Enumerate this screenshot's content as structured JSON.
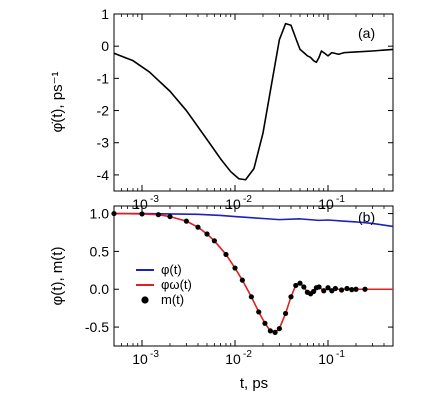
{
  "chart_data": [
    {
      "type": "line",
      "panel_label": "(a)",
      "ylabel": "φ̇(t), ps⁻¹",
      "xscale": "log",
      "xlim": [
        0.0005,
        0.5
      ],
      "ylim": [
        -4.5,
        1
      ],
      "yticks": [
        1,
        0,
        -1,
        -2,
        -3,
        -4
      ],
      "ytick_labels": [
        "1",
        "0",
        "-1",
        "-2",
        "-3",
        "-4"
      ],
      "xticks": [
        0.001,
        0.01,
        0.1
      ],
      "xtick_labels": [
        "10",
        "10",
        "10"
      ],
      "xtick_exponents": [
        "-3",
        "-2",
        "-1"
      ],
      "grid": false,
      "series": [
        {
          "color": "#000000",
          "x": [
            0.0005,
            0.0008,
            0.0012,
            0.002,
            0.003,
            0.005,
            0.007,
            0.009,
            0.011,
            0.013,
            0.016,
            0.02,
            0.025,
            0.03,
            0.035,
            0.04,
            0.045,
            0.05,
            0.055,
            0.06,
            0.065,
            0.07,
            0.075,
            0.08,
            0.085,
            0.09,
            0.1,
            0.11,
            0.13,
            0.15,
            0.2,
            0.3,
            0.5
          ],
          "y": [
            -0.22,
            -0.45,
            -0.8,
            -1.4,
            -2.0,
            -2.9,
            -3.5,
            -3.9,
            -4.12,
            -4.15,
            -3.8,
            -2.7,
            -1.1,
            0.2,
            0.7,
            0.65,
            0.25,
            -0.1,
            -0.2,
            -0.3,
            -0.35,
            -0.45,
            -0.5,
            -0.35,
            -0.15,
            -0.2,
            -0.3,
            -0.2,
            -0.25,
            -0.2,
            -0.18,
            -0.15,
            -0.1
          ]
        }
      ]
    },
    {
      "type": "line",
      "panel_label": "(b)",
      "ylabel": "φ(t), m(t)",
      "xlabel": "t, ps",
      "xscale": "log",
      "xlim": [
        0.0005,
        0.5
      ],
      "ylim": [
        -0.75,
        1.1
      ],
      "yticks": [
        1.0,
        0.5,
        0.0,
        -0.5
      ],
      "ytick_labels": [
        "1.0",
        "0.5",
        "0.0",
        "-0.5"
      ],
      "xticks": [
        0.001,
        0.01,
        0.1
      ],
      "xtick_labels": [
        "10",
        "10",
        "10"
      ],
      "xtick_exponents": [
        "-3",
        "-2",
        "-1"
      ],
      "grid": false,
      "legend_position": "lower-left",
      "series": [
        {
          "name": "φ(t)",
          "color": "#1f1fbf",
          "style": "line",
          "x": [
            0.0005,
            0.001,
            0.002,
            0.004,
            0.007,
            0.01,
            0.015,
            0.02,
            0.03,
            0.05,
            0.08,
            0.1,
            0.15,
            0.2,
            0.3,
            0.5
          ],
          "y": [
            1.0,
            1.0,
            0.995,
            0.99,
            0.975,
            0.96,
            0.945,
            0.935,
            0.92,
            0.93,
            0.91,
            0.915,
            0.9,
            0.89,
            0.87,
            0.83
          ]
        },
        {
          "name": "φω(t)",
          "color": "#e02020",
          "style": "line",
          "x": [
            0.0005,
            0.001,
            0.0015,
            0.002,
            0.003,
            0.004,
            0.005,
            0.006,
            0.008,
            0.01,
            0.012,
            0.015,
            0.018,
            0.021,
            0.024,
            0.027,
            0.03,
            0.035,
            0.04,
            0.045,
            0.05,
            0.055,
            0.06,
            0.065,
            0.07,
            0.075,
            0.08,
            0.09,
            0.1,
            0.11,
            0.12,
            0.14,
            0.16,
            0.18,
            0.2,
            0.25,
            0.3,
            0.4,
            0.5
          ],
          "y": [
            1.0,
            0.995,
            0.985,
            0.96,
            0.9,
            0.82,
            0.73,
            0.64,
            0.46,
            0.28,
            0.12,
            -0.1,
            -0.3,
            -0.45,
            -0.55,
            -0.57,
            -0.52,
            -0.32,
            -0.1,
            0.05,
            0.08,
            0.03,
            -0.04,
            -0.06,
            -0.03,
            0.02,
            0.03,
            -0.02,
            0.02,
            -0.02,
            0.01,
            -0.01,
            0.01,
            -0.005,
            0.0,
            0.0,
            0.0,
            0.0,
            0.0
          ]
        },
        {
          "name": "m(t)",
          "color": "#000000",
          "style": "markers",
          "x": [
            0.0005,
            0.001,
            0.0015,
            0.002,
            0.003,
            0.004,
            0.005,
            0.006,
            0.008,
            0.01,
            0.012,
            0.015,
            0.018,
            0.021,
            0.024,
            0.027,
            0.03,
            0.035,
            0.04,
            0.045,
            0.05,
            0.055,
            0.06,
            0.065,
            0.07,
            0.075,
            0.08,
            0.09,
            0.1,
            0.11,
            0.12,
            0.14,
            0.16,
            0.18,
            0.2,
            0.25
          ],
          "y": [
            1.0,
            0.995,
            0.985,
            0.96,
            0.9,
            0.82,
            0.73,
            0.64,
            0.46,
            0.28,
            0.12,
            -0.1,
            -0.3,
            -0.45,
            -0.55,
            -0.57,
            -0.52,
            -0.32,
            -0.1,
            0.05,
            0.08,
            0.03,
            -0.04,
            -0.06,
            -0.03,
            0.02,
            0.03,
            -0.02,
            0.02,
            -0.02,
            0.01,
            -0.01,
            0.01,
            -0.005,
            0.0,
            0.0
          ]
        }
      ]
    }
  ]
}
